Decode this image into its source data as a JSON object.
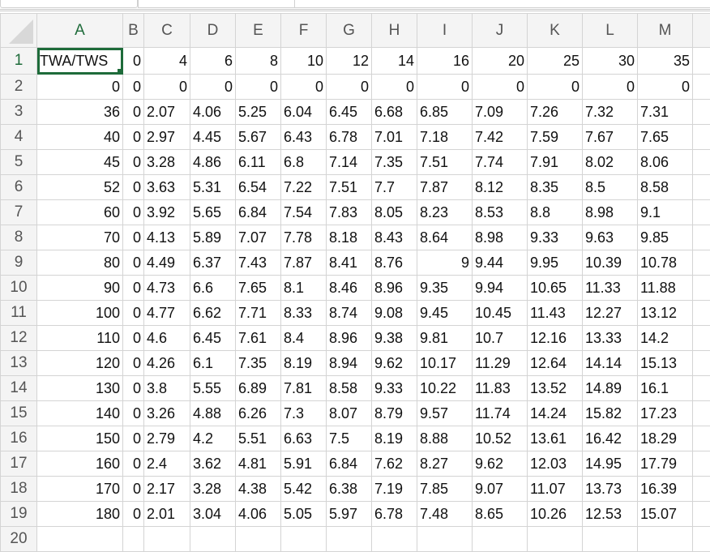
{
  "sheet": {
    "columns": [
      "A",
      "B",
      "C",
      "D",
      "E",
      "F",
      "G",
      "H",
      "I",
      "J",
      "K",
      "L",
      "M",
      ""
    ],
    "selected_cell": "A1",
    "accent_color": "#1e6b3a",
    "rows": [
      {
        "n": "1",
        "cells": [
          "TWA/TWS",
          "0",
          "4",
          "6",
          "8",
          "10",
          "12",
          "14",
          "16",
          "20",
          "25",
          "30",
          "35"
        ]
      },
      {
        "n": "2",
        "cells": [
          "0",
          "0",
          "0",
          "0",
          "0",
          "0",
          "0",
          "0",
          "0",
          "0",
          "0",
          "0",
          "0"
        ]
      },
      {
        "n": "3",
        "cells": [
          "36",
          "0",
          "2.07",
          "4.06",
          "5.25",
          "6.04",
          "6.45",
          "6.68",
          "6.85",
          "7.09",
          "7.26",
          "7.32",
          "7.31"
        ]
      },
      {
        "n": "4",
        "cells": [
          "40",
          "0",
          "2.97",
          "4.45",
          "5.67",
          "6.43",
          "6.78",
          "7.01",
          "7.18",
          "7.42",
          "7.59",
          "7.67",
          "7.65"
        ]
      },
      {
        "n": "5",
        "cells": [
          "45",
          "0",
          "3.28",
          "4.86",
          "6.11",
          "6.8",
          "7.14",
          "7.35",
          "7.51",
          "7.74",
          "7.91",
          "8.02",
          "8.06"
        ]
      },
      {
        "n": "6",
        "cells": [
          "52",
          "0",
          "3.63",
          "5.31",
          "6.54",
          "7.22",
          "7.51",
          "7.7",
          "7.87",
          "8.12",
          "8.35",
          "8.5",
          "8.58"
        ]
      },
      {
        "n": "7",
        "cells": [
          "60",
          "0",
          "3.92",
          "5.65",
          "6.84",
          "7.54",
          "7.83",
          "8.05",
          "8.23",
          "8.53",
          "8.8",
          "8.98",
          "9.1"
        ]
      },
      {
        "n": "8",
        "cells": [
          "70",
          "0",
          "4.13",
          "5.89",
          "7.07",
          "7.78",
          "8.18",
          "8.43",
          "8.64",
          "8.98",
          "9.33",
          "9.63",
          "9.85"
        ]
      },
      {
        "n": "9",
        "cells": [
          "80",
          "0",
          "4.49",
          "6.37",
          "7.43",
          "7.87",
          "8.41",
          "8.76",
          "9",
          "9.44",
          "9.95",
          "10.39",
          "10.78"
        ]
      },
      {
        "n": "10",
        "cells": [
          "90",
          "0",
          "4.73",
          "6.6",
          "7.65",
          "8.1",
          "8.46",
          "8.96",
          "9.35",
          "9.94",
          "10.65",
          "11.33",
          "11.88"
        ]
      },
      {
        "n": "11",
        "cells": [
          "100",
          "0",
          "4.77",
          "6.62",
          "7.71",
          "8.33",
          "8.74",
          "9.08",
          "9.45",
          "10.45",
          "11.43",
          "12.27",
          "13.12"
        ]
      },
      {
        "n": "12",
        "cells": [
          "110",
          "0",
          "4.6",
          "6.45",
          "7.61",
          "8.4",
          "8.96",
          "9.38",
          "9.81",
          "10.7",
          "12.16",
          "13.33",
          "14.2"
        ]
      },
      {
        "n": "13",
        "cells": [
          "120",
          "0",
          "4.26",
          "6.1",
          "7.35",
          "8.19",
          "8.94",
          "9.62",
          "10.17",
          "11.29",
          "12.64",
          "14.14",
          "15.13"
        ]
      },
      {
        "n": "14",
        "cells": [
          "130",
          "0",
          "3.8",
          "5.55",
          "6.89",
          "7.81",
          "8.58",
          "9.33",
          "10.22",
          "11.83",
          "13.52",
          "14.89",
          "16.1"
        ]
      },
      {
        "n": "15",
        "cells": [
          "140",
          "0",
          "3.26",
          "4.88",
          "6.26",
          "7.3",
          "8.07",
          "8.79",
          "9.57",
          "11.74",
          "14.24",
          "15.82",
          "17.23"
        ]
      },
      {
        "n": "16",
        "cells": [
          "150",
          "0",
          "2.79",
          "4.2",
          "5.51",
          "6.63",
          "7.5",
          "8.19",
          "8.88",
          "10.52",
          "13.61",
          "16.42",
          "18.29"
        ]
      },
      {
        "n": "17",
        "cells": [
          "160",
          "0",
          "2.4",
          "3.62",
          "4.81",
          "5.91",
          "6.84",
          "7.62",
          "8.27",
          "9.62",
          "12.03",
          "14.95",
          "17.79"
        ]
      },
      {
        "n": "18",
        "cells": [
          "170",
          "0",
          "2.17",
          "3.28",
          "4.38",
          "5.42",
          "6.38",
          "7.19",
          "7.85",
          "9.07",
          "11.07",
          "13.73",
          "16.39"
        ]
      },
      {
        "n": "19",
        "cells": [
          "180",
          "0",
          "2.01",
          "3.04",
          "4.06",
          "5.05",
          "5.97",
          "6.78",
          "7.48",
          "8.65",
          "10.26",
          "12.53",
          "15.07"
        ]
      },
      {
        "n": "20",
        "cells": [
          "",
          "",
          "",
          "",
          "",
          "",
          "",
          "",
          "",
          "",
          "",
          "",
          ""
        ]
      }
    ]
  }
}
